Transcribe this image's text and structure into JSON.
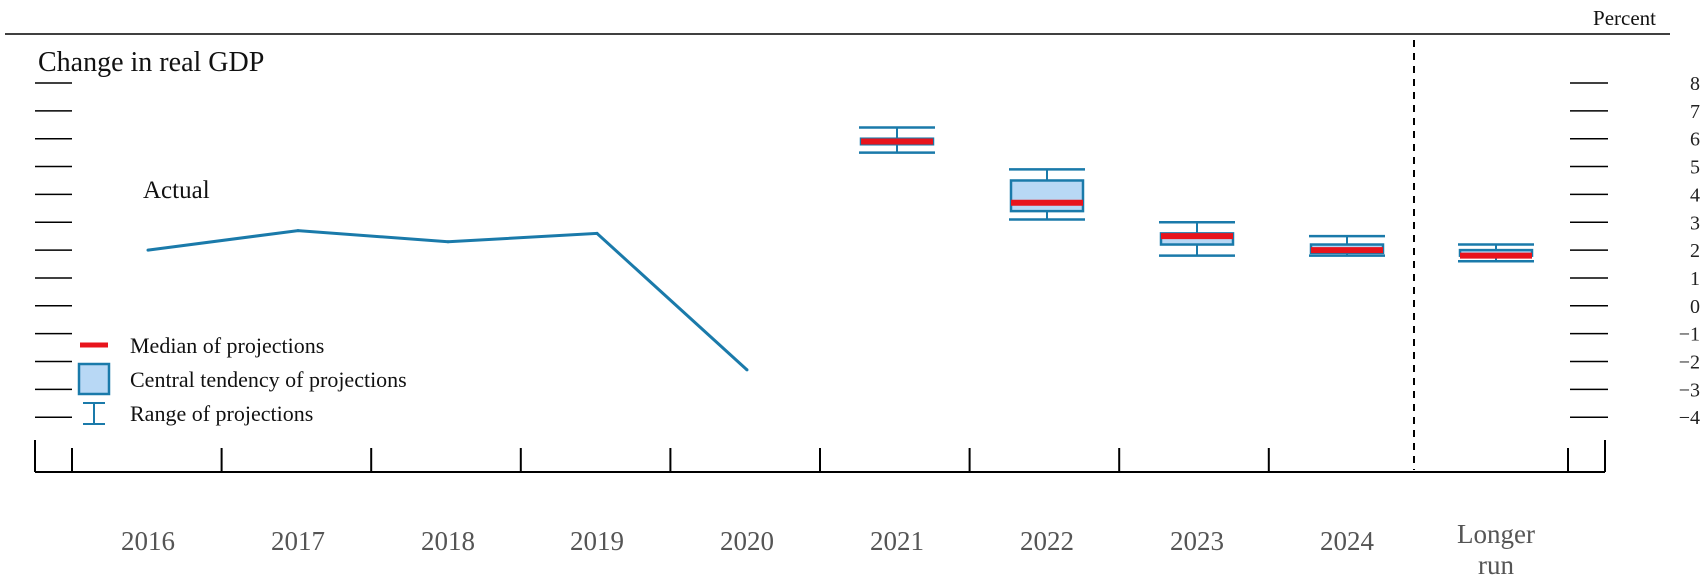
{
  "chart_data": {
    "type": "line",
    "title": "Change in real GDP",
    "unit_label": "Percent",
    "categories": [
      "2016",
      "2017",
      "2018",
      "2019",
      "2020",
      "2021",
      "2022",
      "2023",
      "2024",
      "Longer run"
    ],
    "ylim": [
      -4,
      8
    ],
    "yticks": [
      8,
      7,
      6,
      5,
      4,
      3,
      2,
      1,
      0,
      -1,
      -2,
      -3,
      -4
    ],
    "ytick_labels": [
      "8",
      "7",
      "6",
      "5",
      "4",
      "3",
      "2",
      "1",
      "0",
      "−1",
      "−2",
      "−3",
      "−4"
    ],
    "actual": {
      "label": "Actual",
      "x": [
        "2016",
        "2017",
        "2018",
        "2019",
        "2020"
      ],
      "values": [
        2.0,
        2.7,
        2.3,
        2.6,
        -2.3
      ]
    },
    "projections": [
      {
        "x": "2021",
        "median": 5.9,
        "central_tendency": [
          5.8,
          6.0
        ],
        "range": [
          5.5,
          6.4
        ]
      },
      {
        "x": "2022",
        "median": 3.7,
        "central_tendency": [
          3.4,
          4.5
        ],
        "range": [
          3.1,
          4.9
        ]
      },
      {
        "x": "2023",
        "median": 2.5,
        "central_tendency": [
          2.2,
          2.6
        ],
        "range": [
          1.8,
          3.0
        ]
      },
      {
        "x": "2024",
        "median": 2.0,
        "central_tendency": [
          1.9,
          2.2
        ],
        "range": [
          1.8,
          2.5
        ]
      },
      {
        "x": "Longer run",
        "median": 1.8,
        "central_tendency": [
          1.8,
          2.0
        ],
        "range": [
          1.6,
          2.2
        ]
      }
    ],
    "legend": {
      "median": "Median of projections",
      "central_tendency": "Central tendency of projections",
      "range": "Range of projections"
    },
    "colors": {
      "actual": "#1a7aaa",
      "median": "#e8141c",
      "central_fill": "#b8d8f5",
      "box_stroke": "#1a7aaa"
    }
  }
}
